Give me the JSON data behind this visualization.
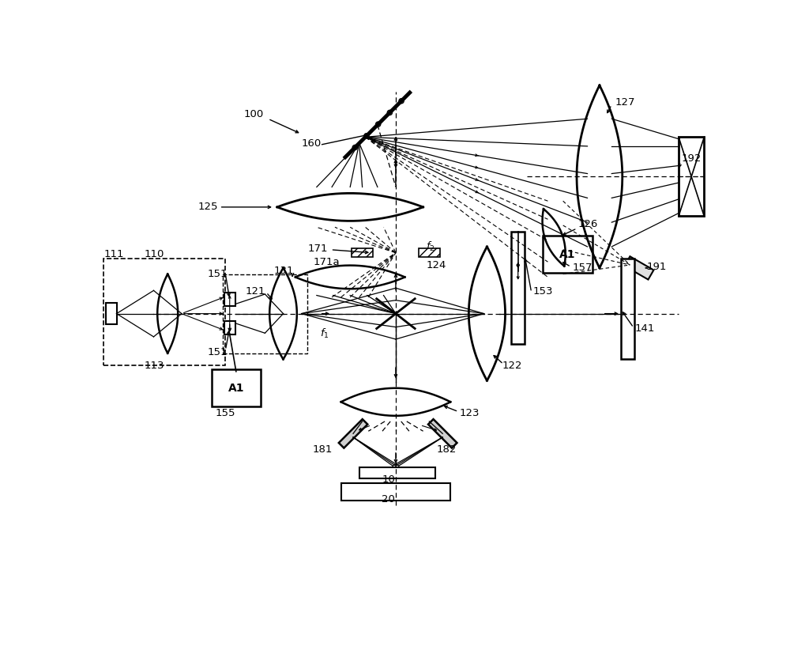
{
  "bg_color": "#ffffff",
  "lc": "#000000",
  "fig_width": 10.0,
  "fig_height": 8.22,
  "dpi": 100,
  "xlim": [
    0,
    10
  ],
  "ylim": [
    0,
    8.22
  ]
}
